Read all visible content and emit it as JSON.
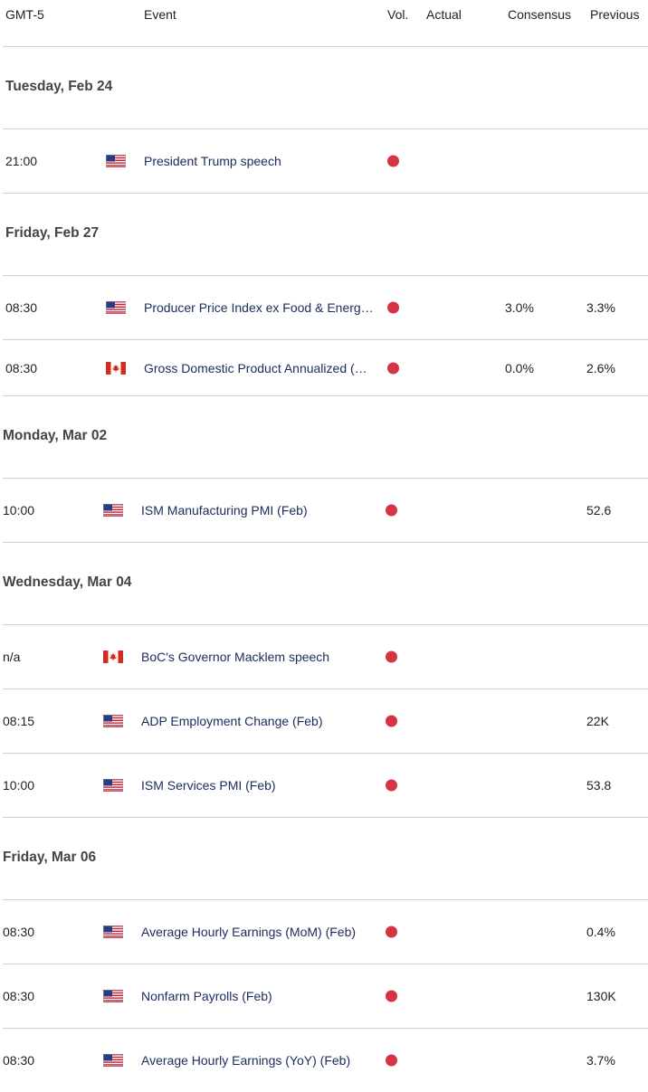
{
  "header": {
    "timezone": "GMT-5",
    "event": "Event",
    "volatility": "Vol.",
    "actual": "Actual",
    "consensus": "Consensus",
    "previous": "Previous"
  },
  "groups": [
    {
      "date": "Tuesday, Feb 24",
      "events": [
        {
          "time": "21:00",
          "event": "President Trump speech"
        }
      ]
    },
    {
      "date": "Friday, Feb 27",
      "events": [
        {
          "time": "08:30",
          "event": "Producer Price Index ex Food & Energ…",
          "consensus": "3.0%",
          "previous": "3.3%"
        },
        {
          "time": "08:30",
          "event": "Gross Domestic Product Annualized (…",
          "consensus": "0.0%",
          "previous": "2.6%"
        }
      ]
    },
    {
      "date": "Monday, Mar 02",
      "events": [
        {
          "time": "10:00",
          "event": "ISM Manufacturing PMI (Feb)",
          "previous": "52.6"
        }
      ]
    },
    {
      "date": "Wednesday, Mar 04",
      "events": [
        {
          "time": "n/a",
          "event": "BoC's Governor Macklem speech"
        },
        {
          "time": "08:15",
          "event": "ADP Employment Change (Feb)",
          "previous": "22K"
        },
        {
          "time": "10:00",
          "event": "ISM Services PMI (Feb)",
          "previous": "53.8"
        }
      ]
    },
    {
      "date": "Friday, Mar 06",
      "events": [
        {
          "time": "08:30",
          "event": "Average Hourly Earnings (MoM) (Feb)",
          "previous": "0.4%"
        },
        {
          "time": "08:30",
          "event": "Nonfarm Payrolls (Feb)",
          "previous": "130K"
        },
        {
          "time": "08:30",
          "event": "Average Hourly Earnings (YoY) (Feb)",
          "previous": "3.7%"
        }
      ]
    }
  ]
}
